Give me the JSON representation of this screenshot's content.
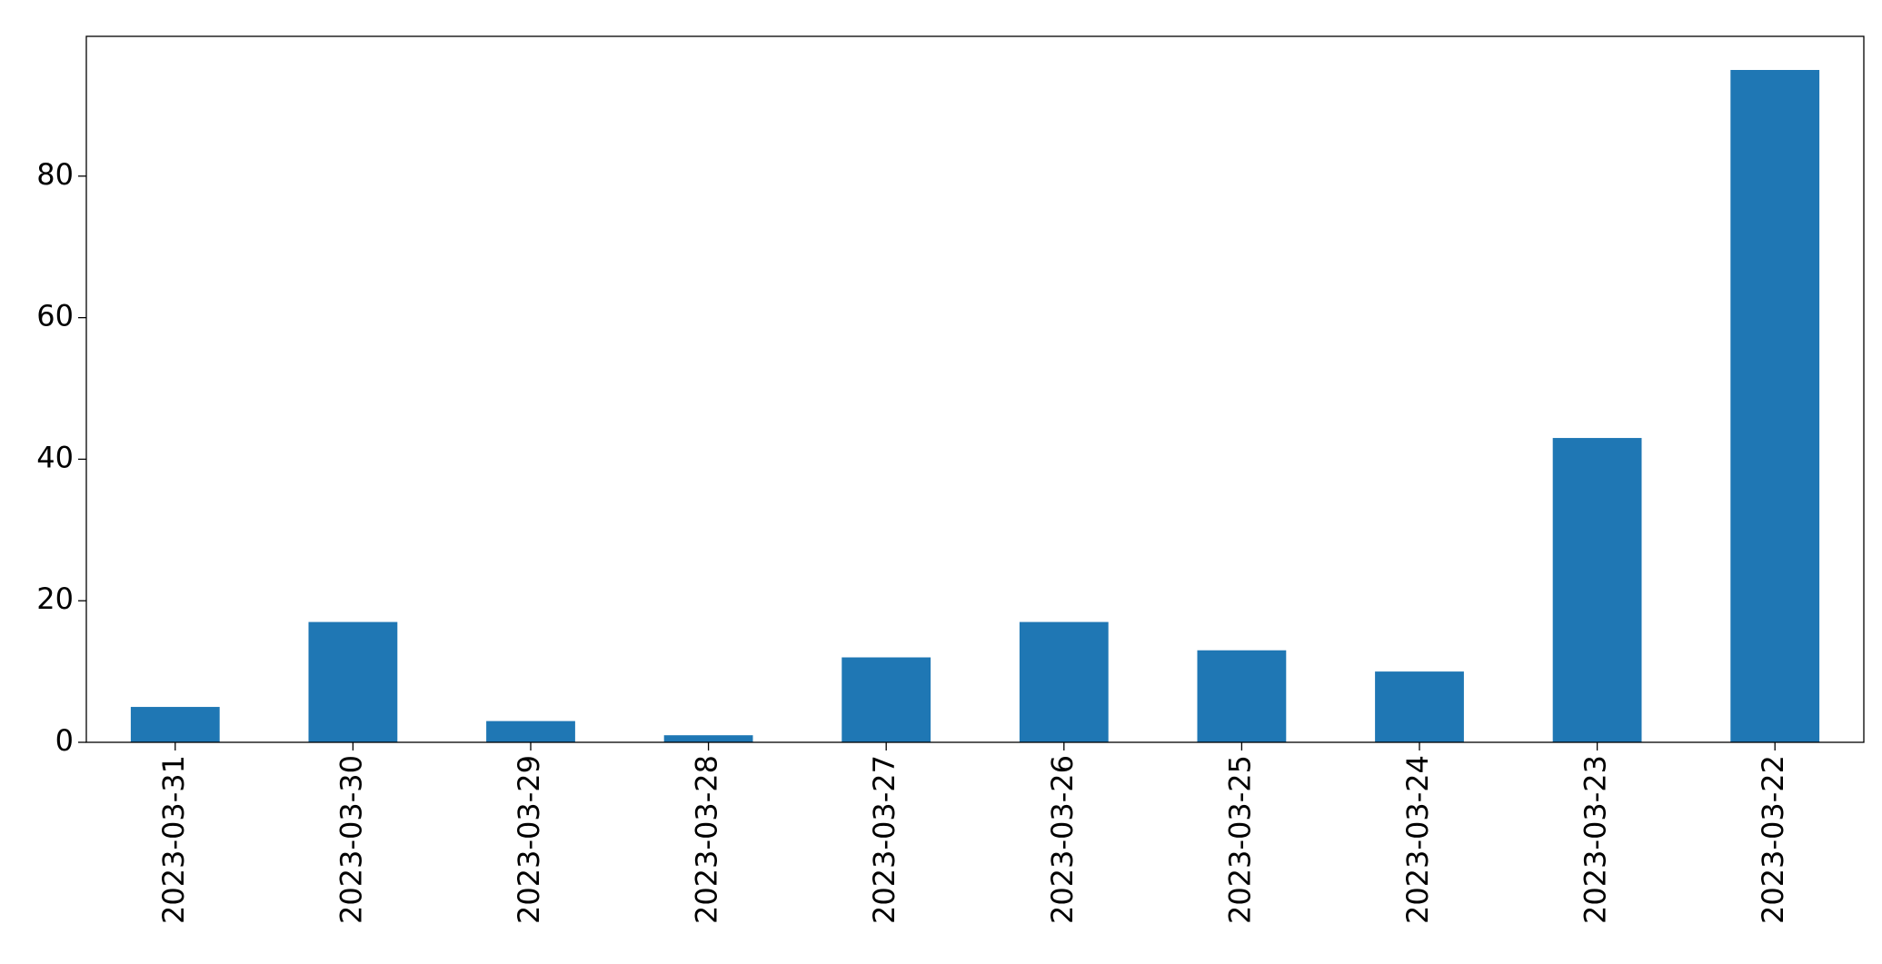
{
  "chart_data": {
    "type": "bar",
    "categories": [
      "2023-03-31",
      "2023-03-30",
      "2023-03-29",
      "2023-03-28",
      "2023-03-27",
      "2023-03-26",
      "2023-03-25",
      "2023-03-24",
      "2023-03-23",
      "2023-03-22"
    ],
    "values": [
      5,
      17,
      3,
      1,
      12,
      17,
      13,
      10,
      43,
      95
    ],
    "color": "#1f77b4",
    "ylim": [
      0,
      99.75
    ],
    "yticks": [
      0,
      20,
      40,
      60,
      80
    ],
    "grid": false
  }
}
